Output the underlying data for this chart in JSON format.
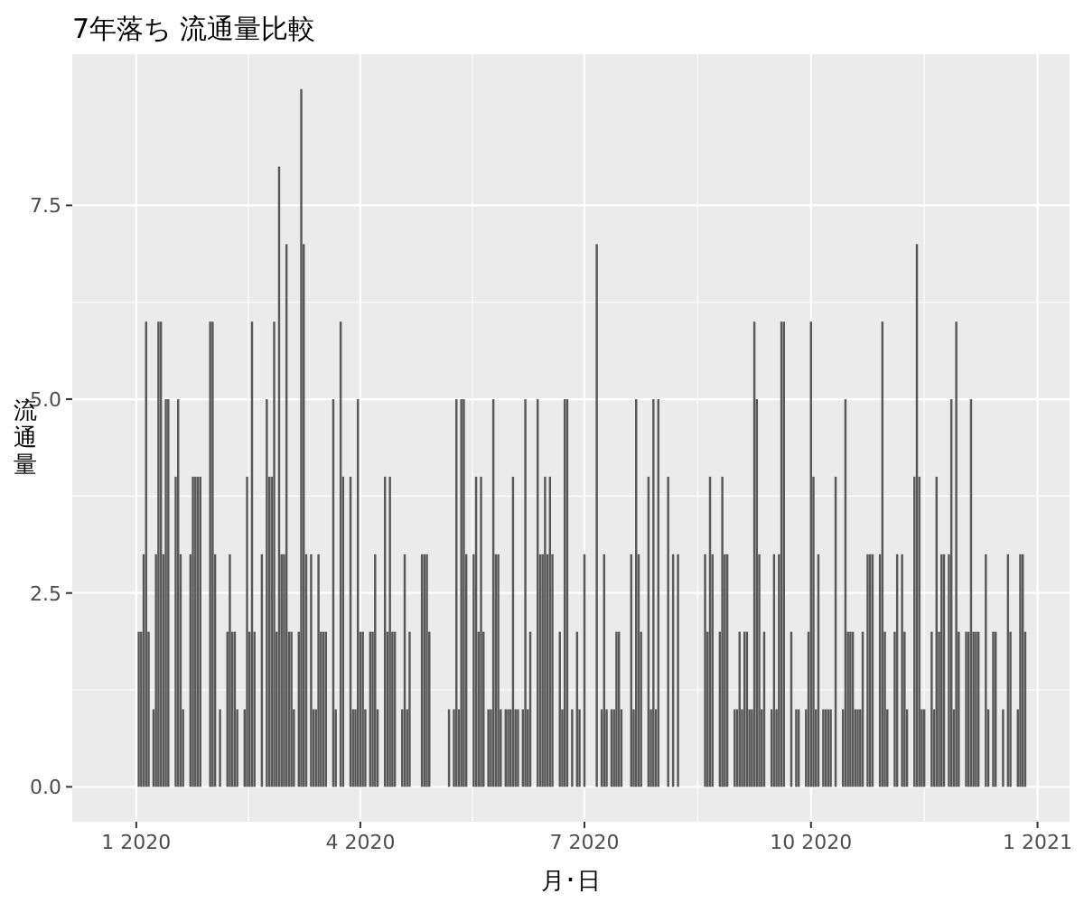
{
  "chart_data": {
    "type": "bar",
    "title": "7年落ち 流通量比較",
    "xlabel": "月･日",
    "ylabel": "流通量",
    "color": "#595959",
    "grid": true,
    "xlim": [
      "2019-12-06",
      "2021-01-14"
    ],
    "ylim": [
      -0.45,
      9.45
    ],
    "xticks": [
      {
        "value": "2020-01-01",
        "label": "1 2020"
      },
      {
        "value": "2020-04-01",
        "label": "4 2020"
      },
      {
        "value": "2020-07-01",
        "label": "7 2020"
      },
      {
        "value": "2020-10-01",
        "label": "10 2020"
      },
      {
        "value": "2021-01-01",
        "label": "1 2021"
      }
    ],
    "yticks": [
      {
        "value": 0,
        "label": "0.0"
      },
      {
        "value": 2.5,
        "label": "2.5"
      },
      {
        "value": 5,
        "label": "5.0"
      },
      {
        "value": 7.5,
        "label": "7.5"
      }
    ],
    "x": [
      "2020-01-02",
      "2020-01-03",
      "2020-01-04",
      "2020-01-05",
      "2020-01-06",
      "2020-01-08",
      "2020-01-09",
      "2020-01-10",
      "2020-01-11",
      "2020-01-12",
      "2020-01-13",
      "2020-01-14",
      "2020-01-17",
      "2020-01-18",
      "2020-01-19",
      "2020-01-20",
      "2020-01-23",
      "2020-01-24",
      "2020-01-25",
      "2020-01-26",
      "2020-01-27",
      "2020-01-31",
      "2020-02-01",
      "2020-02-02",
      "2020-02-04",
      "2020-02-07",
      "2020-02-08",
      "2020-02-09",
      "2020-02-10",
      "2020-02-11",
      "2020-02-14",
      "2020-02-15",
      "2020-02-16",
      "2020-02-17",
      "2020-02-18",
      "2020-02-21",
      "2020-02-23",
      "2020-02-24",
      "2020-02-25",
      "2020-02-26",
      "2020-02-27",
      "2020-02-28",
      "2020-02-29",
      "2020-03-01",
      "2020-03-02",
      "2020-03-03",
      "2020-03-04",
      "2020-03-05",
      "2020-03-07",
      "2020-03-08",
      "2020-03-09",
      "2020-03-10",
      "2020-03-12",
      "2020-03-13",
      "2020-03-14",
      "2020-03-15",
      "2020-03-16",
      "2020-03-17",
      "2020-03-18",
      "2020-03-21",
      "2020-03-22",
      "2020-03-24",
      "2020-03-25",
      "2020-03-28",
      "2020-03-29",
      "2020-03-30",
      "2020-03-31",
      "2020-04-01",
      "2020-04-02",
      "2020-04-03",
      "2020-04-05",
      "2020-04-06",
      "2020-04-07",
      "2020-04-08",
      "2020-04-11",
      "2020-04-12",
      "2020-04-13",
      "2020-04-14",
      "2020-04-15",
      "2020-04-18",
      "2020-04-19",
      "2020-04-20",
      "2020-04-21",
      "2020-04-26",
      "2020-04-27",
      "2020-04-28",
      "2020-04-29",
      "2020-05-07",
      "2020-05-09",
      "2020-05-10",
      "2020-05-11",
      "2020-05-12",
      "2020-05-13",
      "2020-05-14",
      "2020-05-17",
      "2020-05-18",
      "2020-05-19",
      "2020-05-20",
      "2020-05-21",
      "2020-05-23",
      "2020-05-24",
      "2020-05-25",
      "2020-05-26",
      "2020-05-27",
      "2020-05-28",
      "2020-05-30",
      "2020-05-31",
      "2020-06-01",
      "2020-06-02",
      "2020-06-03",
      "2020-06-04",
      "2020-06-06",
      "2020-06-07",
      "2020-06-08",
      "2020-06-09",
      "2020-06-12",
      "2020-06-13",
      "2020-06-14",
      "2020-06-15",
      "2020-06-16",
      "2020-06-17",
      "2020-06-18",
      "2020-06-21",
      "2020-06-22",
      "2020-06-23",
      "2020-06-24",
      "2020-06-26",
      "2020-06-28",
      "2020-06-29",
      "2020-07-01",
      "2020-07-06",
      "2020-07-08",
      "2020-07-09",
      "2020-07-10",
      "2020-07-12",
      "2020-07-13",
      "2020-07-14",
      "2020-07-15",
      "2020-07-16",
      "2020-07-20",
      "2020-07-21",
      "2020-07-22",
      "2020-07-23",
      "2020-07-24",
      "2020-07-27",
      "2020-07-28",
      "2020-07-29",
      "2020-07-30",
      "2020-07-31",
      "2020-08-04",
      "2020-08-06",
      "2020-08-08",
      "2020-08-19",
      "2020-08-20",
      "2020-08-21",
      "2020-08-22",
      "2020-08-25",
      "2020-08-26",
      "2020-08-27",
      "2020-08-28",
      "2020-08-31",
      "2020-09-01",
      "2020-09-02",
      "2020-09-03",
      "2020-09-04",
      "2020-09-05",
      "2020-09-06",
      "2020-09-07",
      "2020-09-08",
      "2020-09-09",
      "2020-09-10",
      "2020-09-11",
      "2020-09-12",
      "2020-09-15",
      "2020-09-16",
      "2020-09-17",
      "2020-09-18",
      "2020-09-19",
      "2020-09-20",
      "2020-09-23",
      "2020-09-25",
      "2020-09-26",
      "2020-09-29",
      "2020-09-30",
      "2020-10-01",
      "2020-10-02",
      "2020-10-03",
      "2020-10-04",
      "2020-10-06",
      "2020-10-07",
      "2020-10-08",
      "2020-10-09",
      "2020-10-11",
      "2020-10-14",
      "2020-10-15",
      "2020-10-16",
      "2020-10-17",
      "2020-10-18",
      "2020-10-19",
      "2020-10-20",
      "2020-10-21",
      "2020-10-22",
      "2020-10-24",
      "2020-10-25",
      "2020-10-26",
      "2020-10-29",
      "2020-10-30",
      "2020-10-31",
      "2020-11-01",
      "2020-11-04",
      "2020-11-05",
      "2020-11-07",
      "2020-11-08",
      "2020-11-09",
      "2020-11-12",
      "2020-11-13",
      "2020-11-14",
      "2020-11-15",
      "2020-11-16",
      "2020-11-19",
      "2020-11-20",
      "2020-11-21",
      "2020-11-22",
      "2020-11-23",
      "2020-11-24",
      "2020-11-26",
      "2020-11-27",
      "2020-11-28",
      "2020-11-29",
      "2020-11-30",
      "2020-12-03",
      "2020-12-04",
      "2020-12-05",
      "2020-12-06",
      "2020-12-07",
      "2020-12-08",
      "2020-12-11",
      "2020-12-12",
      "2020-12-14",
      "2020-12-15",
      "2020-12-18",
      "2020-12-20",
      "2020-12-21",
      "2020-12-24",
      "2020-12-25",
      "2020-12-26",
      "2020-12-27"
    ],
    "values": [
      2,
      2,
      3,
      6,
      2,
      1,
      3,
      6,
      6,
      3,
      5,
      5,
      4,
      5,
      3,
      1,
      3,
      4,
      4,
      4,
      4,
      6,
      6,
      3,
      1,
      2,
      3,
      2,
      2,
      1,
      1,
      4,
      2,
      6,
      2,
      3,
      5,
      4,
      4,
      6,
      2,
      8,
      3,
      3,
      7,
      2,
      2,
      1,
      2,
      9,
      7,
      3,
      3,
      1,
      1,
      3,
      2,
      2,
      2,
      5,
      1,
      6,
      4,
      4,
      1,
      1,
      5,
      2,
      2,
      1,
      2,
      2,
      3,
      1,
      4,
      2,
      4,
      2,
      2,
      1,
      3,
      1,
      2,
      3,
      3,
      3,
      2,
      1,
      1,
      5,
      1,
      5,
      5,
      3,
      3,
      4,
      2,
      4,
      2,
      1,
      1,
      5,
      3,
      3,
      1,
      1,
      1,
      1,
      4,
      1,
      1,
      1,
      5,
      1,
      2,
      5,
      3,
      3,
      4,
      3,
      4,
      3,
      2,
      1,
      5,
      5,
      1,
      2,
      1,
      3,
      7,
      1,
      3,
      1,
      1,
      1,
      2,
      2,
      1,
      3,
      1,
      5,
      3,
      2,
      4,
      1,
      5,
      1,
      5,
      4,
      3,
      3,
      3,
      2,
      4,
      3,
      2,
      4,
      3,
      3,
      1,
      1,
      2,
      1,
      2,
      2,
      1,
      1,
      6,
      5,
      3,
      1,
      2,
      1,
      3,
      1,
      3,
      6,
      6,
      2,
      1,
      1,
      1,
      2,
      6,
      4,
      1,
      3,
      1,
      1,
      1,
      1,
      4,
      1,
      5,
      2,
      2,
      2,
      1,
      1,
      1,
      2,
      3,
      3,
      3,
      3,
      6,
      2,
      1,
      2,
      3,
      3,
      2,
      1,
      4,
      7,
      4,
      1,
      1,
      2,
      1,
      4,
      2,
      3,
      3,
      3,
      5,
      1,
      6,
      2,
      2,
      2,
      5,
      2,
      2,
      2,
      3,
      1,
      2,
      2,
      1,
      3,
      2,
      1,
      3,
      3,
      2
    ]
  }
}
